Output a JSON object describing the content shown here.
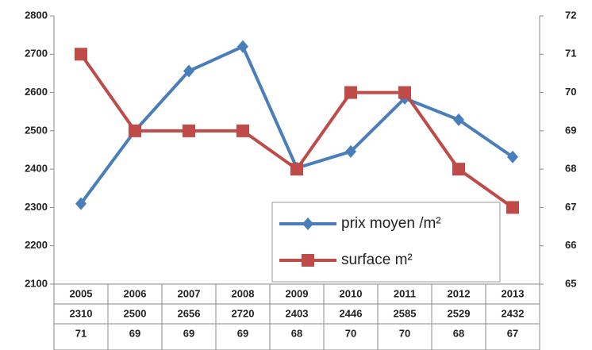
{
  "chart_data": {
    "type": "line",
    "categories": [
      "2005",
      "2006",
      "2007",
      "2008",
      "2009",
      "2010",
      "2011",
      "2012",
      "2013"
    ],
    "series": [
      {
        "name": "prix moyen /m²",
        "color": "#4a7ebb",
        "marker": "diamond",
        "values": [
          2310,
          2500,
          2656,
          2720,
          2403,
          2446,
          2585,
          2529,
          2432
        ]
      },
      {
        "name": "surface m²",
        "color": "#be4b48",
        "marker": "square",
        "axis": "y2",
        "values": [
          71,
          69,
          69,
          69,
          68,
          70,
          70,
          68,
          67
        ]
      }
    ],
    "ylim": [
      2100,
      2800
    ],
    "yticks": [
      2100,
      2200,
      2300,
      2400,
      2500,
      2600,
      2700,
      2800
    ],
    "y2lim": [
      65,
      72
    ],
    "y2ticks": [
      65,
      66,
      67,
      68,
      69,
      70,
      71,
      72
    ],
    "data_table": true
  }
}
